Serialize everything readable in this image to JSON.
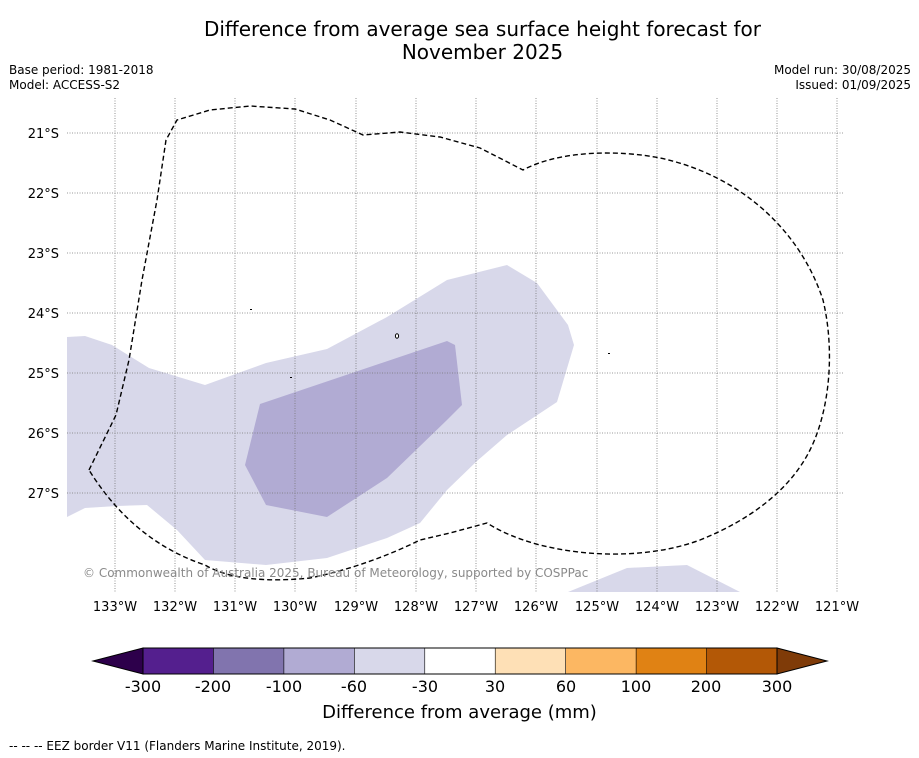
{
  "header": {
    "title_line1": "Difference from average sea surface height forecast for",
    "title_line2": "November 2025",
    "base_period": "Base period: 1981-2018",
    "model": "Model: ACCESS-S2",
    "model_run": "Model run: 30/08/2025",
    "issued": "Issued: 01/09/2025"
  },
  "map": {
    "lat_labels": [
      "21°S",
      "22°S",
      "23°S",
      "24°S",
      "25°S",
      "26°S",
      "27°S"
    ],
    "lon_labels": [
      "133°W",
      "132°W",
      "131°W",
      "130°W",
      "129°W",
      "128°W",
      "127°W",
      "126°W",
      "125°W",
      "124°W",
      "123°W",
      "122°W",
      "121°W"
    ],
    "copyright": "© Commonwealth of Australia 2025, Bureau of Meteorology, supported by COSPPac",
    "anomaly_classes": [
      {
        "range": "-60 to -30 mm",
        "color": "#d8d8ea"
      },
      {
        "range": "-100 to -60 mm",
        "color": "#b1abd3"
      }
    ]
  },
  "colorbar": {
    "title": "Difference from average (mm)",
    "labels": [
      "-300",
      "-200",
      "-100",
      "-60",
      "-30",
      "30",
      "60",
      "100",
      "200",
      "300"
    ],
    "colors": [
      "#541f8e",
      "#8174ae",
      "#b1abd3",
      "#d8d8ea",
      "#ffffff",
      "#fee0b6",
      "#fcb762",
      "#e08214",
      "#b35806"
    ],
    "extend_low_color": "#2d004b",
    "extend_high_color": "#7f3b08"
  },
  "footnote": "-- -- -- EEZ border V11 (Flanders Marine Institute, 2019)."
}
